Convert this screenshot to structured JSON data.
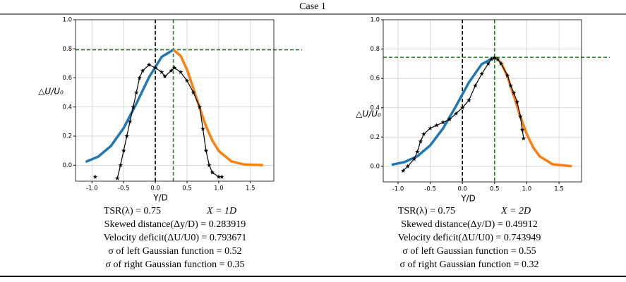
{
  "title": "Case 1",
  "chart_data": [
    {
      "type": "line",
      "xlabel": "Y/D",
      "ylabel": "△U/U₀",
      "xlim": [
        -1.26,
        1.87
      ],
      "ylim": [
        -0.11,
        1.0
      ],
      "xticks": [
        {
          "value": -1.0,
          "label": "-1.0"
        },
        -0.5,
        {
          "value": 0.0,
          "label": "0.0"
        },
        0.5,
        {
          "value": 1.0,
          "label": "1.0"
        },
        1.5
      ],
      "yticks": [
        {
          "value": 0.0,
          "label": "0.0"
        },
        0.2,
        0.4,
        0.6,
        0.8,
        {
          "value": 1.0,
          "label": "1.0"
        }
      ],
      "grid": true,
      "vlines": [
        {
          "x": 0,
          "color": "#000000"
        },
        {
          "x": 0.283919,
          "color": "#1a8a1a"
        }
      ],
      "hlines": [
        {
          "y": 0.793671,
          "color": "#1a8a1a"
        }
      ],
      "series": [
        {
          "color": "#1f77b4",
          "x": [
            -1.1,
            -0.9,
            -0.7,
            -0.5,
            -0.3,
            -0.1,
            0.1,
            0.283919
          ],
          "values": [
            0.023,
            0.059,
            0.133,
            0.255,
            0.423,
            0.604,
            0.745,
            0.793671
          ]
        },
        {
          "color": "#ff7f0e",
          "x": [
            0.283919,
            0.4,
            0.5,
            0.6,
            0.7,
            0.8,
            0.9,
            1.0,
            1.2,
            1.4,
            1.7
          ],
          "values": [
            0.793671,
            0.751,
            0.656,
            0.528,
            0.392,
            0.268,
            0.169,
            0.098,
            0.026,
            0.005,
            0.0
          ]
        },
        {
          "color": "#000000",
          "markers": true,
          "x": [
            -0.95,
            -0.7,
            -0.6,
            -0.55,
            -0.5,
            -0.45,
            -0.4,
            -0.35,
            -0.3,
            -0.25,
            -0.2,
            -0.1,
            0,
            0.1,
            0.15,
            0.25,
            0.3,
            0.4,
            0.5,
            0.6,
            0.7,
            0.75,
            0.8,
            0.85,
            0.9,
            1.0,
            1.05
          ],
          "values": [
            -0.08,
            null,
            -0.09,
            0.0,
            0.1,
            0.2,
            0.3,
            0.4,
            0.5,
            0.6,
            0.65,
            0.69,
            0.67,
            0.64,
            0.61,
            0.65,
            0.67,
            0.64,
            0.58,
            0.5,
            0.4,
            0.25,
            0.1,
            0.0,
            -0.05,
            -0.08,
            -0.08
          ]
        }
      ]
    },
    {
      "type": "line",
      "xlabel": "Y/D",
      "ylabel": "△U/U₀",
      "xlim": [
        -1.23,
        1.85
      ],
      "ylim": [
        -0.106,
        1.0
      ],
      "xticks": [
        {
          "value": -1.0,
          "label": "-1.0"
        },
        -0.5,
        {
          "value": 0.0,
          "label": "0.0"
        },
        0.5,
        {
          "value": 1.0,
          "label": "1.0"
        },
        1.5
      ],
      "yticks": [
        {
          "value": 0.0,
          "label": "0.0"
        },
        0.2,
        0.4,
        0.6,
        0.8,
        {
          "value": 1.0,
          "label": "1.0"
        }
      ],
      "grid": true,
      "vlines": [
        {
          "x": 0,
          "color": "#000000"
        },
        {
          "x": 0.49912,
          "color": "#1a8a1a"
        }
      ],
      "hlines": [
        {
          "y": 0.743949,
          "color": "#1a8a1a"
        }
      ],
      "series": [
        {
          "color": "#1f77b4",
          "x": [
            -1.1,
            -0.9,
            -0.7,
            -0.5,
            -0.3,
            -0.1,
            0.1,
            0.3,
            0.49912
          ],
          "values": [
            0.011,
            0.029,
            0.069,
            0.143,
            0.259,
            0.411,
            0.572,
            0.697,
            0.743949
          ]
        },
        {
          "color": "#ff7f0e",
          "x": [
            0.49912,
            0.6,
            0.7,
            0.8,
            0.9,
            1.0,
            1.1,
            1.2,
            1.4,
            1.7
          ],
          "values": [
            0.743949,
            0.708,
            0.611,
            0.478,
            0.339,
            0.218,
            0.128,
            0.068,
            0.014,
            0.001
          ]
        },
        {
          "color": "#000000",
          "markers": true,
          "x": [
            -0.92,
            -0.85,
            -0.75,
            -0.7,
            -0.65,
            -0.6,
            -0.5,
            -0.4,
            -0.3,
            -0.2,
            -0.1,
            0,
            0.1,
            0.2,
            0.3,
            0.4,
            0.45,
            0.5,
            0.55,
            0.6,
            0.7,
            0.75,
            0.8,
            0.85,
            0.9,
            0.93,
            0.95
          ],
          "values": [
            -0.03,
            0.0,
            0.05,
            0.1,
            0.17,
            0.22,
            0.26,
            0.28,
            0.3,
            0.32,
            0.36,
            0.4,
            0.45,
            0.55,
            0.63,
            0.7,
            0.73,
            0.74,
            0.73,
            0.7,
            0.62,
            0.55,
            0.5,
            0.44,
            0.34,
            0.25,
            0.19
          ]
        }
      ]
    }
  ],
  "captions": [
    {
      "tsr": "TSR(λ) = 0.75",
      "x": "X = 1D",
      "lines": [
        "Skewed distance(Δy/D) = 0.283919",
        "Velocity deficit(ΔU/U0) = 0.793671",
        "σ of left Gaussian function = 0.52",
        "σ of right Gaussian function = 0.35"
      ]
    },
    {
      "tsr": "TSR(λ) = 0.75",
      "x": "X = 2D",
      "lines": [
        "Skewed distance(Δy/D) = 0.49912",
        "Velocity deficit(ΔU/U0) = 0.743949",
        "σ of left Gaussian function = 0.55",
        "σ of right Gaussian function = 0.32"
      ]
    }
  ]
}
